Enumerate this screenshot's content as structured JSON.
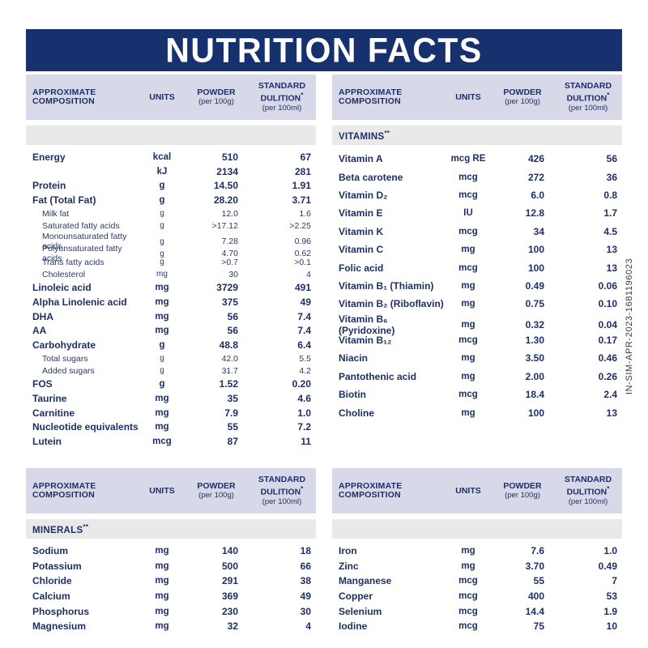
{
  "banner": {
    "title": "NUTRITION FACTS"
  },
  "side_code": "IN-SIM-APR-2023-1681196023",
  "colors": {
    "banner_navy": "#17316e",
    "text_navy": "#1e2f66",
    "header_strip_lavender": "#d8d9e8",
    "section_band_gray": "#e9e9e9",
    "background": "#ffffff",
    "side_code_gray": "#3a3a3a"
  },
  "table_header": {
    "col1": "APPROXIMATE COMPOSITION",
    "col2": "UNITS",
    "col3": "POWDER",
    "col3_sub": "(per 100g)",
    "col4": "STANDARD DULITION",
    "col4_sup": "*",
    "col4_sub": "(per 100ml)"
  },
  "tables": {
    "top_left": {
      "section_label": "",
      "section_sup": "",
      "rows": [
        {
          "name": "Energy",
          "unit": "kcal",
          "powder": "510",
          "standard": "67",
          "style": "bold"
        },
        {
          "name": "",
          "unit": "kJ",
          "powder": "2134",
          "standard": "281",
          "style": "bold"
        },
        {
          "name": "Protein",
          "unit": "g",
          "powder": "14.50",
          "standard": "1.91",
          "style": "bold"
        },
        {
          "name": "Fat (Total Fat)",
          "unit": "g",
          "powder": "28.20",
          "standard": "3.71",
          "style": "bold"
        },
        {
          "name": "Milk fat",
          "unit": "g",
          "powder": "12.0",
          "standard": "1.6",
          "style": "sub"
        },
        {
          "name": "Saturated fatty acids",
          "unit": "g",
          "powder": ">17.12",
          "standard": ">2.25",
          "style": "sub"
        },
        {
          "name": "Monounsaturated fatty acids",
          "unit": "g",
          "powder": "7.28",
          "standard": "0.96",
          "style": "sub"
        },
        {
          "name": "Polyunsaturated fatty acids",
          "unit": "g",
          "powder": "4.70",
          "standard": "0.62",
          "style": "sub"
        },
        {
          "name": "Trans fatty acids",
          "unit": "g",
          "powder": ">0.7",
          "standard": ">0.1",
          "style": "sub"
        },
        {
          "name": "Cholesterol",
          "unit": "mg",
          "powder": "30",
          "standard": "4",
          "style": "sub"
        },
        {
          "name": "Linoleic acid",
          "unit": "mg",
          "powder": "3729",
          "standard": "491",
          "style": "bold"
        },
        {
          "name": "Alpha Linolenic acid",
          "unit": "mg",
          "powder": "375",
          "standard": "49",
          "style": "bold"
        },
        {
          "name": "DHA",
          "unit": "mg",
          "powder": "56",
          "standard": "7.4",
          "style": "bold"
        },
        {
          "name": "AA",
          "unit": "mg",
          "powder": "56",
          "standard": "7.4",
          "style": "bold"
        },
        {
          "name": "Carbohydrate",
          "unit": "g",
          "powder": "48.8",
          "standard": "6.4",
          "style": "bold"
        },
        {
          "name": "Total sugars",
          "unit": "g",
          "powder": "42.0",
          "standard": "5.5",
          "style": "sub"
        },
        {
          "name": "Added sugars",
          "unit": "g",
          "powder": "31.7",
          "standard": "4.2",
          "style": "sub"
        },
        {
          "name": "FOS",
          "unit": "g",
          "powder": "1.52",
          "standard": "0.20",
          "style": "bold"
        },
        {
          "name": "Taurine",
          "unit": "mg",
          "powder": "35",
          "standard": "4.6",
          "style": "bold"
        },
        {
          "name": "Carnitine",
          "unit": "mg",
          "powder": "7.9",
          "standard": "1.0",
          "style": "bold"
        },
        {
          "name": "Nucleotide equivalents",
          "unit": "mg",
          "powder": "55",
          "standard": "7.2",
          "style": "bold"
        },
        {
          "name": "Lutein",
          "unit": "mcg",
          "powder": "87",
          "standard": "11",
          "style": "bold"
        }
      ]
    },
    "top_right": {
      "section_label": "VITAMINS",
      "section_sup": "**",
      "rows": [
        {
          "name": "Vitamin A",
          "unit": "mcg RE",
          "powder": "426",
          "standard": "56",
          "style": "bold"
        },
        {
          "name": "Beta carotene",
          "unit": "mcg",
          "powder": "272",
          "standard": "36",
          "style": "bold"
        },
        {
          "name": "Vitamin D₂",
          "unit": "mcg",
          "powder": "6.0",
          "standard": "0.8",
          "style": "bold"
        },
        {
          "name": "Vitamin E",
          "unit": "IU",
          "powder": "12.8",
          "standard": "1.7",
          "style": "bold"
        },
        {
          "name": "Vitamin K",
          "unit": "mcg",
          "powder": "34",
          "standard": "4.5",
          "style": "bold"
        },
        {
          "name": "Vitamin C",
          "unit": "mg",
          "powder": "100",
          "standard": "13",
          "style": "bold"
        },
        {
          "name": "Folic acid",
          "unit": "mcg",
          "powder": "100",
          "standard": "13",
          "style": "bold"
        },
        {
          "name": "Vitamin B₁ (Thiamin)",
          "unit": "mg",
          "powder": "0.49",
          "standard": "0.06",
          "style": "bold"
        },
        {
          "name": "Vitamin B₂ (Riboflavin)",
          "unit": "mg",
          "powder": "0.75",
          "standard": "0.10",
          "style": "bold"
        },
        {
          "name": "Vitamin B₆ (Pyridoxine)",
          "unit": "mg",
          "powder": "0.32",
          "standard": "0.04",
          "style": "bold"
        },
        {
          "name": "Vitamin B₁₂",
          "unit": "mcg",
          "powder": "1.30",
          "standard": "0.17",
          "style": "bold"
        },
        {
          "name": "Niacin",
          "unit": "mg",
          "powder": "3.50",
          "standard": "0.46",
          "style": "bold"
        },
        {
          "name": "Pantothenic acid",
          "unit": "mg",
          "powder": "2.00",
          "standard": "0.26",
          "style": "bold"
        },
        {
          "name": "Biotin",
          "unit": "mcg",
          "powder": "18.4",
          "standard": "2.4",
          "style": "bold"
        },
        {
          "name": "Choline",
          "unit": "mg",
          "powder": "100",
          "standard": "13",
          "style": "bold"
        }
      ]
    },
    "bottom_left": {
      "section_label": "MINERALS",
      "section_sup": "**",
      "rows": [
        {
          "name": "Sodium",
          "unit": "mg",
          "powder": "140",
          "standard": "18",
          "style": "bold"
        },
        {
          "name": "Potassium",
          "unit": "mg",
          "powder": "500",
          "standard": "66",
          "style": "bold"
        },
        {
          "name": "Chloride",
          "unit": "mg",
          "powder": "291",
          "standard": "38",
          "style": "bold"
        },
        {
          "name": "Calcium",
          "unit": "mg",
          "powder": "369",
          "standard": "49",
          "style": "bold"
        },
        {
          "name": "Phosphorus",
          "unit": "mg",
          "powder": "230",
          "standard": "30",
          "style": "bold"
        },
        {
          "name": "Magnesium",
          "unit": "mg",
          "powder": "32",
          "standard": "4",
          "style": "bold"
        }
      ]
    },
    "bottom_right": {
      "section_label": "",
      "section_sup": "",
      "rows": [
        {
          "name": "Iron",
          "unit": "mg",
          "powder": "7.6",
          "standard": "1.0",
          "style": "bold"
        },
        {
          "name": "Zinc",
          "unit": "mg",
          "powder": "3.70",
          "standard": "0.49",
          "style": "bold"
        },
        {
          "name": "Manganese",
          "unit": "mcg",
          "powder": "55",
          "standard": "7",
          "style": "bold"
        },
        {
          "name": "Copper",
          "unit": "mcg",
          "powder": "400",
          "standard": "53",
          "style": "bold"
        },
        {
          "name": "Selenium",
          "unit": "mcg",
          "powder": "14.4",
          "standard": "1.9",
          "style": "bold"
        },
        {
          "name": "Iodine",
          "unit": "mcg",
          "powder": "75",
          "standard": "10",
          "style": "bold"
        }
      ]
    }
  }
}
